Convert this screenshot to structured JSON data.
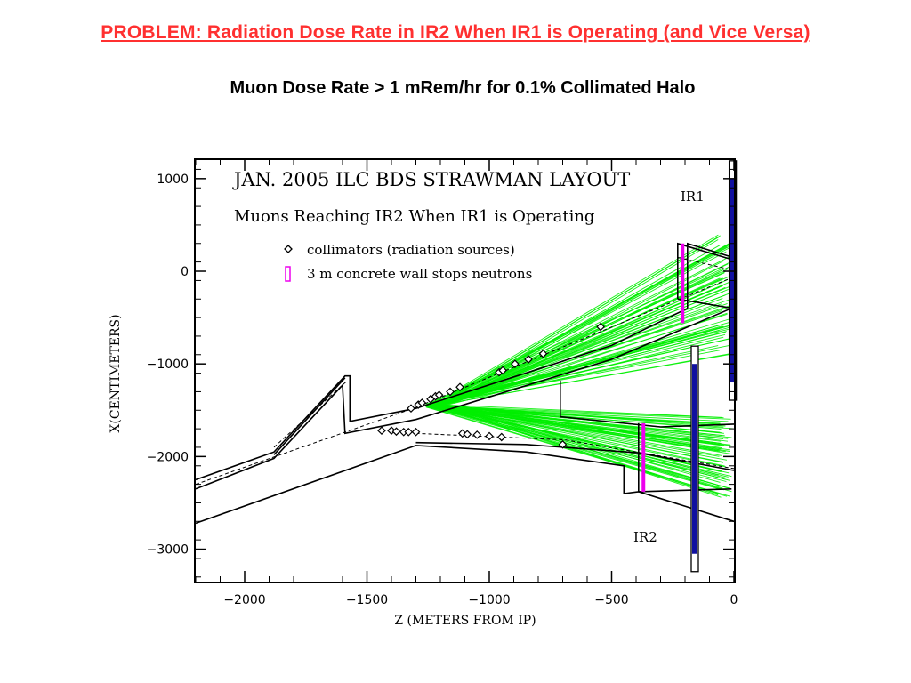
{
  "page": {
    "headline": "PROBLEM:  Radiation Dose Rate in IR2 When IR1 is Operating (and Vice Versa)",
    "subheadline": "Muon Dose Rate  > 1 mRem/hr for 0.1% Collimated Halo"
  },
  "colors": {
    "headline": "#ff3030",
    "muon_tracks": "#00ee00",
    "concrete_wall": "#ee00ee",
    "detector": "#1010a0",
    "outline": "#000000"
  },
  "chart_data": {
    "type": "scatter",
    "title": "JAN. 2005 ILC BDS STRAWMAN LAYOUT",
    "subtitle": "Muons Reaching IR2 When IR1 is Operating",
    "xlabel": "Z (METERS FROM IP)",
    "ylabel": "X(CENTIMETERS)",
    "xlim": [
      -2200,
      0
    ],
    "ylim": [
      -3350,
      1200
    ],
    "xticks": [
      -2000,
      -1500,
      -1000,
      -500,
      0
    ],
    "yticks": [
      1000,
      0,
      -1000,
      -2000,
      -3000
    ],
    "xtick_labels": [
      "−2000",
      "−1500",
      "−1000",
      "−500",
      "0"
    ],
    "ytick_labels": [
      "1000",
      "0",
      "−1000",
      "−2000",
      "−3000"
    ],
    "legend": {
      "position": "top-left",
      "entries": [
        {
          "symbol": "diamond",
          "label": "collimators (radiation sources)"
        },
        {
          "symbol": "bar",
          "label": "3 m concrete wall stops neutrons"
        }
      ]
    },
    "annotations": [
      {
        "text": "IR1",
        "z": -10,
        "x": 800
      },
      {
        "text": "IR2",
        "z": -155,
        "x": -2900
      }
    ],
    "series": [
      {
        "name": "collimators (radiation sources)",
        "points": [
          {
            "z": -1320,
            "x": -1480
          },
          {
            "z": -1290,
            "x": -1440
          },
          {
            "z": -1275,
            "x": -1420
          },
          {
            "z": -1240,
            "x": -1380
          },
          {
            "z": -1220,
            "x": -1350
          },
          {
            "z": -1205,
            "x": -1335
          },
          {
            "z": -1160,
            "x": -1300
          },
          {
            "z": -1120,
            "x": -1250
          },
          {
            "z": -960,
            "x": -1090
          },
          {
            "z": -945,
            "x": -1070
          },
          {
            "z": -895,
            "x": -1000
          },
          {
            "z": -840,
            "x": -950
          },
          {
            "z": -780,
            "x": -890
          },
          {
            "z": -545,
            "x": -600
          },
          {
            "z": -1440,
            "x": -1720
          },
          {
            "z": -1400,
            "x": -1720
          },
          {
            "z": -1380,
            "x": -1730
          },
          {
            "z": -1350,
            "x": -1735
          },
          {
            "z": -1330,
            "x": -1735
          },
          {
            "z": -1300,
            "x": -1735
          },
          {
            "z": -1110,
            "x": -1750
          },
          {
            "z": -1090,
            "x": -1760
          },
          {
            "z": -1050,
            "x": -1765
          },
          {
            "z": -1000,
            "x": -1780
          },
          {
            "z": -950,
            "x": -1790
          },
          {
            "z": -700,
            "x": -1870
          }
        ]
      }
    ],
    "concrete_walls": [
      {
        "z": -210,
        "x_range": [
          -560,
          300
        ]
      },
      {
        "z": -370,
        "x_range": [
          -2380,
          -1640
        ]
      }
    ],
    "detectors": [
      {
        "name": "IR1",
        "z": -5,
        "x_range": [
          -1200,
          1000
        ]
      },
      {
        "name": "IR2",
        "z": -160,
        "x_range": [
          -3050,
          -1000
        ]
      }
    ]
  }
}
